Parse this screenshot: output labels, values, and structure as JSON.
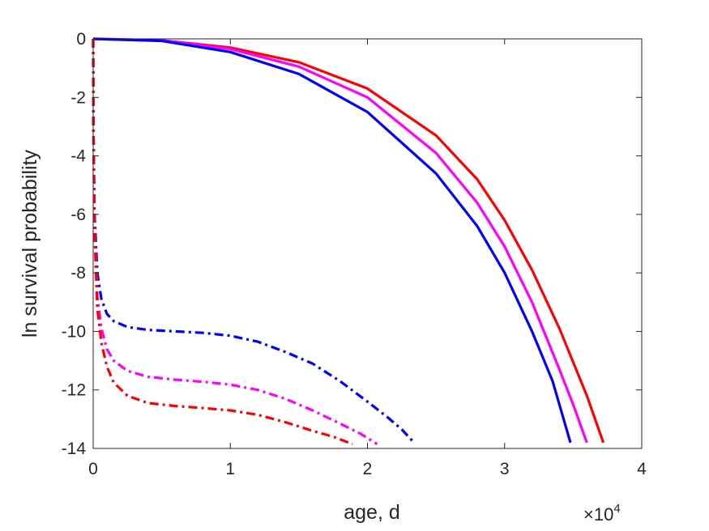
{
  "chart_data": {
    "type": "line",
    "xlabel": "age, d",
    "ylabel": "ln survival probability",
    "xlim": [
      0,
      40000
    ],
    "ylim": [
      -14,
      0
    ],
    "x_ticks": [
      0,
      10000,
      20000,
      30000,
      40000
    ],
    "x_tick_labels": [
      "0",
      "1",
      "2",
      "3",
      "4"
    ],
    "x_multiplier": {
      "base": "×10",
      "exponent": "4"
    },
    "y_ticks": [
      0,
      -2,
      -4,
      -6,
      -8,
      -10,
      -12,
      -14
    ],
    "y_tick_labels": [
      "0",
      "-2",
      "-4",
      "-6",
      "-8",
      "-10",
      "-12",
      "-14"
    ],
    "grid": false,
    "legend": "none",
    "series": [
      {
        "color": "#ff0000",
        "style": "solid",
        "x": [
          0,
          5000,
          10000,
          15000,
          20000,
          25000,
          28000,
          30000,
          32000,
          34000,
          36000,
          37200
        ],
        "y": [
          0,
          -0.05,
          -0.3,
          -0.8,
          -1.7,
          -3.3,
          -4.8,
          -6.2,
          -7.9,
          -9.9,
          -12.2,
          -13.8
        ]
      },
      {
        "color": "#ff00ff",
        "style": "solid",
        "x": [
          0,
          5000,
          10000,
          15000,
          20000,
          25000,
          28000,
          30000,
          32000,
          34000,
          35000,
          36000
        ],
        "y": [
          0,
          -0.05,
          -0.35,
          -0.95,
          -2.0,
          -3.9,
          -5.6,
          -7.1,
          -9.0,
          -11.3,
          -12.5,
          -13.8
        ]
      },
      {
        "color": "#0000ff",
        "style": "solid",
        "x": [
          0,
          5000,
          10000,
          15000,
          20000,
          25000,
          28000,
          30000,
          32000,
          33500,
          34800
        ],
        "y": [
          0,
          -0.07,
          -0.45,
          -1.2,
          -2.5,
          -4.6,
          -6.4,
          -8.0,
          -10.0,
          -11.7,
          -13.8
        ]
      },
      {
        "color": "#0000ff",
        "style": "dashdot",
        "x": [
          0,
          20,
          100,
          300,
          600,
          1000,
          1500,
          2500,
          4000,
          6000,
          8000,
          10000,
          12000,
          14000,
          16000,
          18000,
          20000,
          21500,
          22500,
          23400
        ],
        "y": [
          0,
          -3.0,
          -6.0,
          -8.0,
          -8.9,
          -9.4,
          -9.65,
          -9.85,
          -9.95,
          -10.0,
          -10.05,
          -10.15,
          -10.35,
          -10.7,
          -11.1,
          -11.7,
          -12.4,
          -12.95,
          -13.35,
          -13.8
        ]
      },
      {
        "color": "#ff00ff",
        "style": "dashdot",
        "x": [
          0,
          20,
          100,
          300,
          600,
          1000,
          1500,
          2500,
          4000,
          6000,
          8000,
          10000,
          12000,
          14000,
          16000,
          18000,
          19500,
          20700
        ],
        "y": [
          0,
          -3.0,
          -6.5,
          -8.8,
          -9.9,
          -10.6,
          -11.0,
          -11.35,
          -11.55,
          -11.65,
          -11.72,
          -11.82,
          -12.0,
          -12.3,
          -12.7,
          -13.15,
          -13.5,
          -13.85
        ]
      },
      {
        "color": "#ff0000",
        "style": "dashdot",
        "x": [
          0,
          20,
          100,
          300,
          600,
          1000,
          1500,
          2500,
          4000,
          6000,
          8000,
          10000,
          12000,
          14000,
          16000,
          17500,
          18900
        ],
        "y": [
          0,
          -3.0,
          -6.6,
          -9.2,
          -10.4,
          -11.2,
          -11.75,
          -12.2,
          -12.45,
          -12.55,
          -12.62,
          -12.7,
          -12.85,
          -13.1,
          -13.4,
          -13.6,
          -13.85
        ]
      }
    ]
  }
}
